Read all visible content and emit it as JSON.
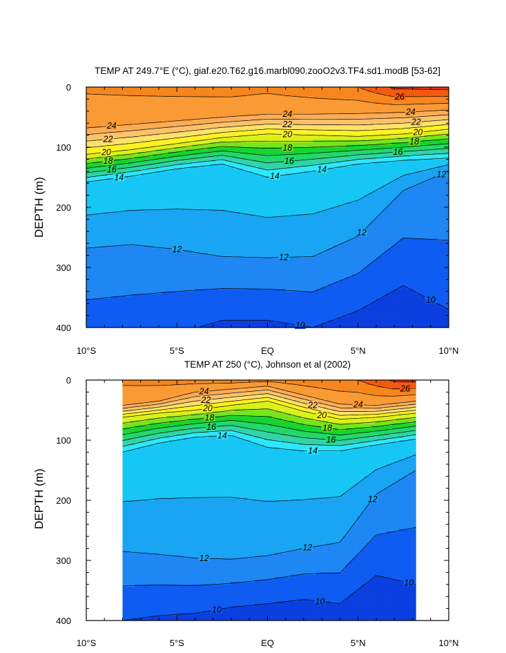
{
  "chart_data": [
    {
      "type": "heatmap",
      "subtype": "filled-contour",
      "title": "TEMP AT 249.7°E (°C), giaf.e20.T62.g16.marbl090.zooO2v3.TF4.sd1.modB [53-62]",
      "ylabel": "DEPTH (m)",
      "xlim": [
        -10,
        10
      ],
      "ylim": [
        400,
        0
      ],
      "y_inverted": true,
      "x_tick_values": [
        -10,
        -5,
        0,
        5,
        10
      ],
      "x_tick_labels": [
        "10°S",
        "5°S",
        "EQ",
        "5°N",
        "10°N"
      ],
      "y_tick_labels": [
        "0",
        "100",
        "200",
        "300",
        "400"
      ],
      "data_xrange": [
        -10,
        10
      ],
      "contour_labels": [
        "24",
        "22",
        "20",
        "18",
        "16",
        "14",
        "24",
        "22",
        "20",
        "18",
        "16",
        "14",
        "26",
        "24",
        "22",
        "20",
        "18",
        "16",
        "14",
        "12",
        "12",
        "12",
        "12",
        "10",
        "10"
      ],
      "isotherm_depths": {
        "x": [
          -10,
          -7.5,
          -5,
          -2.5,
          0,
          2.5,
          5,
          7.5,
          10
        ],
        "t24": [
          68,
          62,
          56,
          50,
          45,
          45,
          44,
          42,
          38
        ],
        "t20": [
          112,
          104,
          94,
          84,
          78,
          80,
          82,
          78,
          70
        ],
        "t14": [
          158,
          148,
          136,
          128,
          150,
          140,
          128,
          122,
          118
        ],
        "t12": [
          268,
          262,
          270,
          282,
          284,
          282,
          248,
          172,
          140
        ],
        "t10": [
          440,
          430,
          410,
          388,
          388,
          400,
          372,
          330,
          370
        ]
      }
    },
    {
      "type": "heatmap",
      "subtype": "filled-contour",
      "title": "TEMP AT 250 (°C), Johnson et al (2002)",
      "ylabel": "DEPTH (m)",
      "xlim": [
        -10,
        10
      ],
      "ylim": [
        400,
        0
      ],
      "y_inverted": true,
      "x_tick_values": [
        -10,
        -5,
        0,
        5,
        10
      ],
      "x_tick_labels": [
        "10°S",
        "5°S",
        "EQ",
        "5°N",
        "10°N"
      ],
      "y_tick_labels": [
        "0",
        "100",
        "200",
        "300",
        "400"
      ],
      "data_xrange": [
        -8,
        8.2
      ],
      "contour_labels": [
        "24",
        "22",
        "20",
        "18",
        "16",
        "14",
        "22",
        "20",
        "18",
        "16",
        "24",
        "26",
        "14",
        "12",
        "12",
        "12",
        "10",
        "10",
        "10"
      ],
      "isotherm_depths": {
        "x": [
          -8,
          -6,
          -4,
          -2,
          0,
          2,
          4,
          6,
          8.2
        ],
        "t24": [
          42,
          35,
          20,
          15,
          10,
          25,
          40,
          42,
          35
        ],
        "t20": [
          62,
          55,
          50,
          42,
          35,
          52,
          65,
          62,
          55
        ],
        "t14": [
          120,
          105,
          95,
          92,
          112,
          118,
          118,
          108,
          98
        ],
        "t12": [
          285,
          290,
          296,
          298,
          292,
          280,
          270,
          190,
          150
        ],
        "t10": [
          400,
          392,
          388,
          378,
          372,
          365,
          372,
          325,
          340
        ]
      }
    }
  ]
}
